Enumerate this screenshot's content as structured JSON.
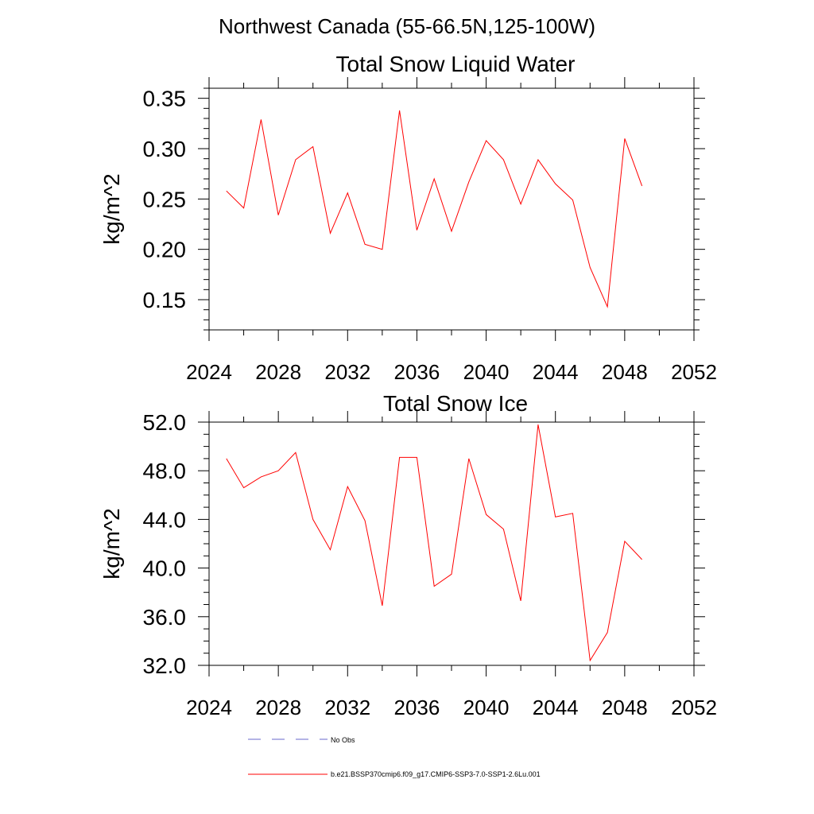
{
  "header": {
    "region_title": "Northwest Canada (55-66.5N,125-100W)"
  },
  "colors": {
    "series": "#ff0000",
    "obs": "#6a6acd",
    "axis": "#000000"
  },
  "chart_data": [
    {
      "type": "line",
      "title": "Total Snow Liquid Water",
      "ylabel": "kg/m^2",
      "xlim": [
        2024,
        2052
      ],
      "ylim": [
        0.12,
        0.36
      ],
      "xticks": [
        2024,
        2028,
        2032,
        2036,
        2040,
        2044,
        2048,
        2052
      ],
      "xtick_labels": [
        "2024",
        "2028",
        "2032",
        "2036",
        "2040",
        "2044",
        "2048",
        "2052"
      ],
      "yticks": [
        0.15,
        0.2,
        0.25,
        0.3,
        0.35
      ],
      "ytick_labels": [
        "0.15",
        "0.20",
        "0.25",
        "0.30",
        "0.35"
      ],
      "grid": false,
      "x": [
        2025,
        2026,
        2027,
        2028,
        2029,
        2030,
        2031,
        2032,
        2033,
        2034,
        2035,
        2036,
        2037,
        2038,
        2039,
        2040,
        2041,
        2042,
        2043,
        2044,
        2045,
        2046,
        2047,
        2048,
        2049
      ],
      "series": [
        {
          "values": [
            0.258,
            0.241,
            0.329,
            0.234,
            0.289,
            0.302,
            0.216,
            0.256,
            0.205,
            0.2,
            0.338,
            0.219,
            0.27,
            0.218,
            0.267,
            0.308,
            0.289,
            0.245,
            0.289,
            0.265,
            0.249,
            0.182,
            0.143,
            0.31,
            0.263
          ]
        }
      ]
    },
    {
      "type": "line",
      "title": "Total Snow Ice",
      "ylabel": "kg/m^2",
      "xlim": [
        2024,
        2052
      ],
      "ylim": [
        32.0,
        52.0
      ],
      "xticks": [
        2024,
        2028,
        2032,
        2036,
        2040,
        2044,
        2048,
        2052
      ],
      "xtick_labels": [
        "2024",
        "2028",
        "2032",
        "2036",
        "2040",
        "2044",
        "2048",
        "2052"
      ],
      "yticks": [
        32,
        36,
        40,
        44,
        48,
        52
      ],
      "ytick_labels": [
        "32.0",
        "36.0",
        "40.0",
        "44.0",
        "48.0",
        "52.0"
      ],
      "grid": false,
      "x": [
        2025,
        2026,
        2027,
        2028,
        2029,
        2030,
        2031,
        2032,
        2033,
        2034,
        2035,
        2036,
        2037,
        2038,
        2039,
        2040,
        2041,
        2042,
        2043,
        2044,
        2045,
        2046,
        2047,
        2048,
        2049
      ],
      "series": [
        {
          "values": [
            49.0,
            46.6,
            47.5,
            48.0,
            49.5,
            44.0,
            41.5,
            46.7,
            43.9,
            36.9,
            49.1,
            49.1,
            38.5,
            39.5,
            49.0,
            44.4,
            43.2,
            37.3,
            51.8,
            44.2,
            44.5,
            32.4,
            34.7,
            42.2,
            40.7
          ]
        }
      ]
    }
  ],
  "legend": {
    "placement": "bottom",
    "items": [
      {
        "label": "No Obs",
        "style": "dashed",
        "color": "#6a6acd"
      },
      {
        "label": "b.e21.BSSP370cmip6.f09_g17.CMIP6-SSP3-7.0-SSP1-2.6Lu.001",
        "style": "solid",
        "color": "#ff0000"
      }
    ]
  }
}
